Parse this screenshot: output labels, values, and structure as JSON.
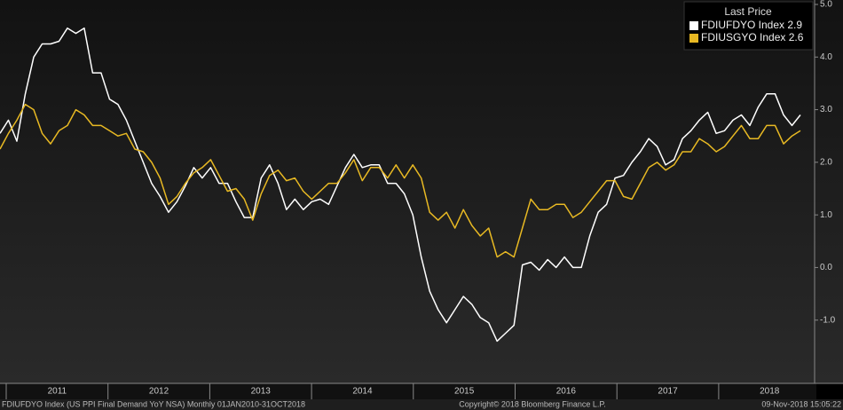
{
  "chart_data": {
    "type": "line",
    "legend_title": "Last Price",
    "legend_position": "upper right",
    "grid": false,
    "xlabels": [
      "2011",
      "2012",
      "2013",
      "2014",
      "2015",
      "2016",
      "2017",
      "2018"
    ],
    "ylim": [
      -2,
      5
    ],
    "yticks": [
      {
        "value": 5,
        "label": "5.0"
      },
      {
        "value": 4,
        "label": "4.0"
      },
      {
        "value": 3,
        "label": "3.0"
      },
      {
        "value": 2,
        "label": "2.0"
      },
      {
        "value": 1,
        "label": "1.0"
      },
      {
        "value": 0,
        "label": "0.0"
      },
      {
        "value": -1,
        "label": "-1.0"
      }
    ],
    "series": [
      {
        "name": "FDIUFDYO Index 2.9",
        "color": "#ffffff",
        "values": [
          2.55,
          2.8,
          2.4,
          3.3,
          4.0,
          4.25,
          4.25,
          4.3,
          4.55,
          4.45,
          4.55,
          3.7,
          3.7,
          3.2,
          3.1,
          2.8,
          2.4,
          2.0,
          1.6,
          1.35,
          1.05,
          1.25,
          1.55,
          1.9,
          1.7,
          1.9,
          1.6,
          1.6,
          1.25,
          0.95,
          0.95,
          1.7,
          1.95,
          1.6,
          1.1,
          1.3,
          1.1,
          1.25,
          1.3,
          1.2,
          1.55,
          1.9,
          2.15,
          1.9,
          1.95,
          1.95,
          1.6,
          1.6,
          1.4,
          1.0,
          0.2,
          -0.45,
          -0.8,
          -1.05,
          -0.8,
          -0.55,
          -0.7,
          -0.95,
          -1.05,
          -1.4,
          -1.25,
          -1.1,
          0.05,
          0.1,
          -0.05,
          0.15,
          0.0,
          0.2,
          0.0,
          0.0,
          0.6,
          1.05,
          1.2,
          1.7,
          1.75,
          2.0,
          2.2,
          2.45,
          2.3,
          1.95,
          2.05,
          2.45,
          2.6,
          2.8,
          2.95,
          2.55,
          2.6,
          2.8,
          2.9,
          2.7,
          3.05,
          3.3,
          3.3,
          2.9,
          2.7,
          2.9
        ]
      },
      {
        "name": "FDIUSGYO Index 2.6",
        "color": "#e8b923",
        "values": [
          2.25,
          2.55,
          2.8,
          3.1,
          3.0,
          2.55,
          2.35,
          2.6,
          2.7,
          3.0,
          2.9,
          2.7,
          2.7,
          2.6,
          2.5,
          2.55,
          2.25,
          2.2,
          2.0,
          1.7,
          1.2,
          1.35,
          1.6,
          1.8,
          1.9,
          2.05,
          1.75,
          1.45,
          1.5,
          1.3,
          0.9,
          1.4,
          1.75,
          1.85,
          1.65,
          1.7,
          1.45,
          1.3,
          1.45,
          1.6,
          1.6,
          1.8,
          2.05,
          1.65,
          1.9,
          1.9,
          1.7,
          1.95,
          1.7,
          1.95,
          1.7,
          1.05,
          0.9,
          1.05,
          0.75,
          1.1,
          0.8,
          0.6,
          0.75,
          0.2,
          0.3,
          0.2,
          0.75,
          1.3,
          1.1,
          1.1,
          1.2,
          1.2,
          0.95,
          1.05,
          1.25,
          1.45,
          1.65,
          1.65,
          1.35,
          1.3,
          1.6,
          1.9,
          2.0,
          1.85,
          1.95,
          2.2,
          2.2,
          2.45,
          2.35,
          2.2,
          2.3,
          2.5,
          2.7,
          2.45,
          2.45,
          2.7,
          2.7,
          2.35,
          2.5,
          2.6
        ]
      }
    ],
    "footer_left": "FDIUFDYO Index (US PPI Final Demand YoY NSA)  Monthly 01JAN2010-31OCT2018",
    "footer_center": "Copyright© 2018 Bloomberg Finance L.P.",
    "footer_right": "09-Nov-2018 15:05:22"
  }
}
